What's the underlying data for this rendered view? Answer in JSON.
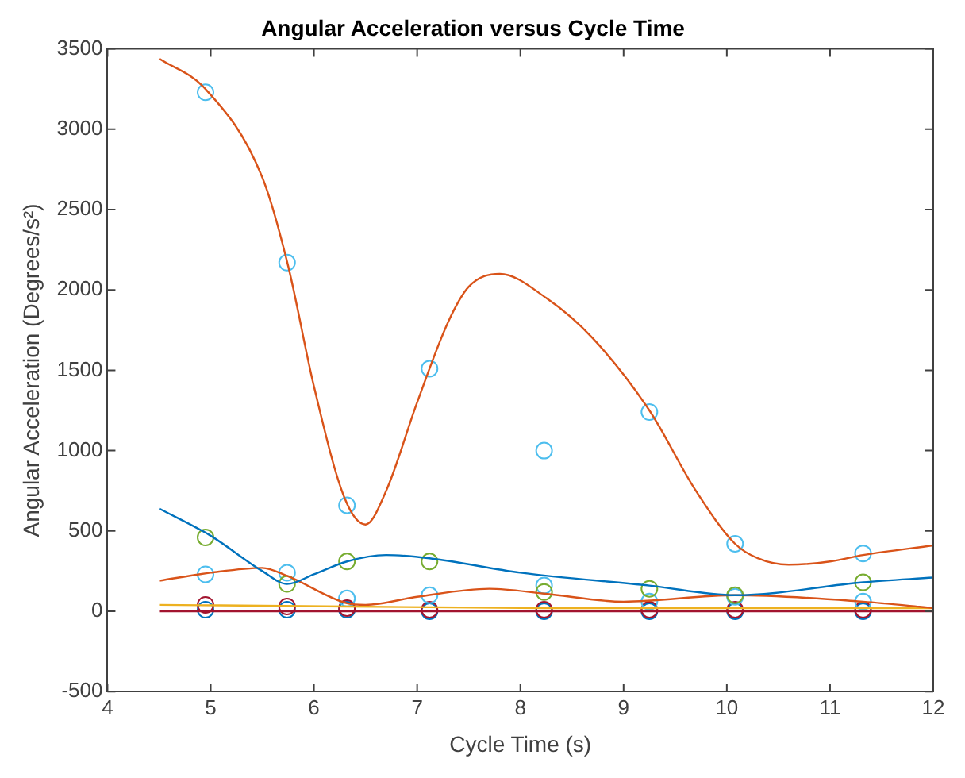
{
  "chart_data": {
    "type": "scatter",
    "title": "Angular Acceleration versus Cycle Time",
    "xlabel": "Cycle Time (s)",
    "ylabel": "Angular Acceleration (Degrees/s²)",
    "xlim": [
      4,
      12
    ],
    "xticks": [
      4,
      5,
      6,
      7,
      8,
      9,
      10,
      11,
      12
    ],
    "ylim": [
      -500,
      3500
    ],
    "yticks": [
      -500,
      0,
      500,
      1000,
      1500,
      2000,
      2500,
      3000,
      3500
    ],
    "series": [
      {
        "type": "line",
        "marker": "none",
        "color": "#d95319",
        "x": [
          4.5,
          4.95,
          5.5,
          5.75,
          6.0,
          6.3,
          6.5,
          6.7,
          7.0,
          7.3,
          7.5,
          7.8,
          8.25,
          8.7,
          9.25,
          9.7,
          10.08,
          10.3,
          10.6,
          11.0,
          11.32,
          12
        ],
        "values": [
          3440,
          3250,
          2700,
          2150,
          1400,
          700,
          540,
          750,
          1300,
          1800,
          2020,
          2100,
          1950,
          1700,
          1250,
          750,
          420,
          330,
          290,
          310,
          350,
          410
        ]
      },
      {
        "type": "line",
        "marker": "none",
        "color": "#0072bd",
        "x": [
          4.5,
          5.0,
          5.5,
          5.74,
          6.0,
          6.32,
          6.7,
          7.12,
          8.0,
          9.25,
          10.08,
          11.32,
          12
        ],
        "values": [
          640,
          470,
          250,
          170,
          230,
          310,
          350,
          330,
          240,
          160,
          100,
          180,
          210
        ]
      },
      {
        "type": "line",
        "marker": "none",
        "color": "#d95319",
        "x": [
          4.5,
          5.0,
          5.5,
          5.74,
          6.32,
          6.5,
          7.0,
          7.7,
          8.23,
          9.0,
          10.08,
          11.32,
          12
        ],
        "values": [
          190,
          240,
          270,
          220,
          50,
          40,
          90,
          140,
          110,
          60,
          100,
          60,
          20
        ]
      },
      {
        "type": "line",
        "marker": "none",
        "color": "#edb120",
        "x": [
          4.5,
          6.32,
          8.23,
          10.08,
          12
        ],
        "values": [
          40,
          30,
          20,
          20,
          20
        ]
      },
      {
        "type": "line",
        "marker": "none",
        "color": "#a2142f",
        "x": [
          4.5,
          6.32,
          8.23,
          10.08,
          12
        ],
        "values": [
          0,
          0,
          0,
          0,
          0
        ]
      },
      {
        "marker": "circle",
        "color": "#4dbeee",
        "x": [
          4.95,
          5.74,
          6.32,
          7.12,
          8.23,
          9.25,
          10.08,
          11.32
        ],
        "values": [
          3230,
          2170,
          660,
          1510,
          1000,
          1240,
          420,
          360
        ]
      },
      {
        "marker": "circle",
        "color": "#77ac30",
        "x": [
          4.95,
          5.74,
          6.32,
          7.12,
          8.23,
          9.25,
          10.08,
          11.32
        ],
        "values": [
          460,
          170,
          310,
          310,
          120,
          140,
          100,
          180
        ]
      },
      {
        "marker": "circle",
        "color": "#4dbeee",
        "x": [
          4.95,
          5.74,
          6.32,
          7.12,
          8.23,
          9.25,
          10.08,
          11.32
        ],
        "values": [
          230,
          240,
          80,
          100,
          160,
          60,
          90,
          60
        ]
      },
      {
        "marker": "circle",
        "color": "#a2142f",
        "x": [
          4.95,
          5.74,
          6.32,
          7.12,
          8.23,
          9.25,
          10.08,
          11.32
        ],
        "values": [
          40,
          30,
          20,
          10,
          10,
          10,
          10,
          10
        ]
      },
      {
        "marker": "circle",
        "color": "#0072bd",
        "x": [
          4.95,
          5.74,
          6.32,
          7.12,
          8.23,
          9.25,
          10.08,
          11.32
        ],
        "values": [
          10,
          10,
          10,
          0,
          0,
          0,
          0,
          0
        ]
      }
    ]
  }
}
